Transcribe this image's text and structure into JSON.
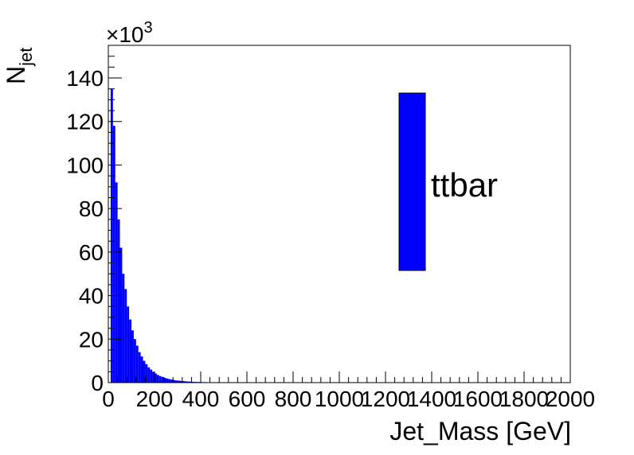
{
  "chart_data": {
    "type": "bar",
    "hist_style": "filled histogram",
    "xlabel": "Jet_Mass [GeV]",
    "ylabel_main": "N",
    "ylabel_sub": "jet",
    "y_multiplier_base": "×10",
    "y_multiplier_exp": "3",
    "xlim": [
      0,
      2000
    ],
    "ylim": [
      0,
      155
    ],
    "x_ticks": [
      "0",
      "200",
      "400",
      "600",
      "800",
      "1000",
      "1200",
      "1400",
      "1600",
      "1800",
      "2000"
    ],
    "y_ticks": [
      "0",
      "20",
      "40",
      "60",
      "80",
      "100",
      "120",
      "140"
    ],
    "bin_width": 10,
    "bin_start": 0,
    "values": [
      0,
      135,
      118,
      92,
      75,
      62,
      50,
      43,
      35,
      29,
      24,
      20,
      17,
      14,
      12,
      10,
      8.5,
      7,
      6,
      5,
      4.2,
      3.5,
      3,
      2.6,
      2.2,
      1.9,
      1.6,
      1.4,
      1.2,
      1.0,
      0.9,
      0.8,
      0.7,
      0.6,
      0.5,
      0.45,
      0.4,
      0.35,
      0.3,
      0.28,
      0.25,
      0.22,
      0.2,
      0.18,
      0.16,
      0.14,
      0.12,
      0.1,
      0.09,
      0.08
    ],
    "series": [
      {
        "name": "ttbar",
        "color": "#0000ff"
      }
    ]
  }
}
